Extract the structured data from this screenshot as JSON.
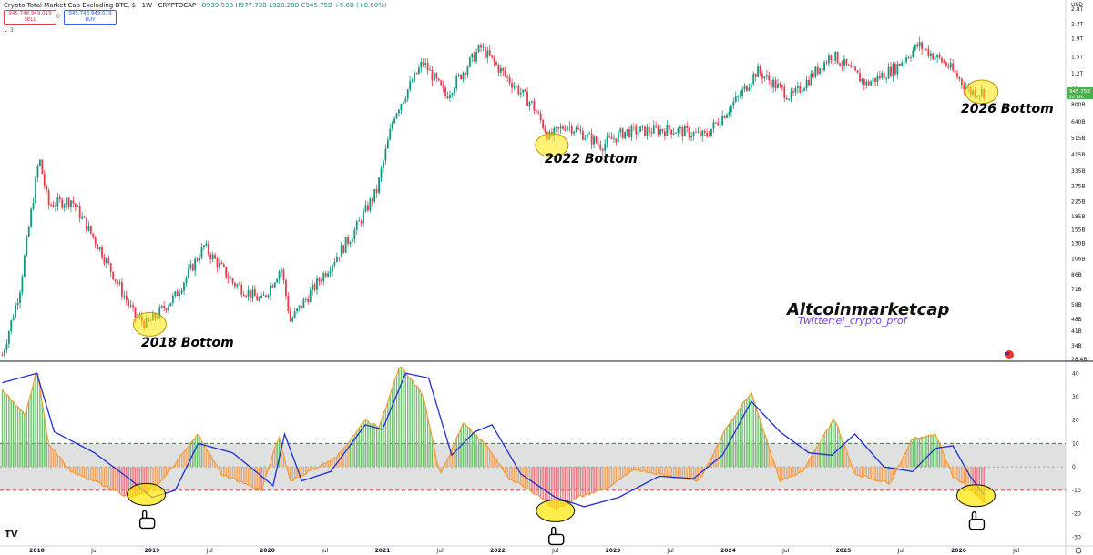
{
  "header": {
    "title": "Crypto Total Market Cap Excluding BTC, $ · 1W · CRYPTOCAP",
    "ohlc": "O939.93B H977.73B L928.28B C945.75B +5.6B (+0.60%)",
    "sell_price": "945,748,949,019",
    "sell_label": "SELL",
    "buy_price": "945,748,949,019",
    "buy_label": "BUY",
    "spread": "0",
    "indicator_count": "3"
  },
  "annotations": {
    "bottom_2018": "2018 Bottom",
    "bottom_2022": "2022 Bottom",
    "bottom_2026": "2026 Bottom",
    "brand": "Altcoinmarketcap",
    "twitter": "Twitter:el_crypto_prof"
  },
  "watermark": "TV",
  "colors": {
    "up": "#089981",
    "down": "#f23645",
    "green_hist": "#6cc36c",
    "red_hist": "#f4737f",
    "orange_hist": "#f5a25d",
    "blue_line": "#1f2fd0",
    "orange_line": "#f39c35",
    "highlight": "#ffe600",
    "price_tag": "#4caf50"
  },
  "chart_data": [
    {
      "type": "candlestick",
      "title": "Crypto Total Market Cap Excluding BTC, $ · 1W · CRYPTOCAP",
      "yscale": "log",
      "currency": "USD",
      "price_axis_ticks": [
        "2.8T",
        "2.3T",
        "1.9T",
        "1.5T",
        "1.2T",
        "1T",
        "800B",
        "640B",
        "515B",
        "415B",
        "335B",
        "275B",
        "225B",
        "185B",
        "155B",
        "130B",
        "106B",
        "86B",
        "71B",
        "58B",
        "48B",
        "41B",
        "34B",
        "28.4B"
      ],
      "last_price_label": "945.75B",
      "last_price_sublabel": "2d 14h",
      "x_ticks": [
        "2018",
        "Jul",
        "2019",
        "Jul",
        "2020",
        "Jul",
        "2021",
        "Jul",
        "2022",
        "Jul",
        "2023",
        "Jul",
        "2024",
        "Jul",
        "2025",
        "Jul",
        "2026",
        "Jul"
      ],
      "trend_points": [
        {
          "date": "2017.70",
          "value": 30
        },
        {
          "date": "2017.85",
          "value": 70
        },
        {
          "date": "2018.02",
          "value": 400
        },
        {
          "date": "2018.10",
          "value": 215
        },
        {
          "date": "2018.30",
          "value": 230
        },
        {
          "date": "2018.55",
          "value": 120
        },
        {
          "date": "2018.85",
          "value": 50
        },
        {
          "date": "2018.96",
          "value": 45
        },
        {
          "date": "2019.20",
          "value": 65
        },
        {
          "date": "2019.45",
          "value": 125
        },
        {
          "date": "2019.70",
          "value": 78
        },
        {
          "date": "2019.95",
          "value": 61
        },
        {
          "date": "2020.12",
          "value": 95
        },
        {
          "date": "2020.20",
          "value": 47
        },
        {
          "date": "2020.45",
          "value": 80
        },
        {
          "date": "2020.75",
          "value": 150
        },
        {
          "date": "2020.95",
          "value": 260
        },
        {
          "date": "2021.10",
          "value": 700
        },
        {
          "date": "2021.35",
          "value": 1400
        },
        {
          "date": "2021.55",
          "value": 900
        },
        {
          "date": "2021.85",
          "value": 1700
        },
        {
          "date": "2022.05",
          "value": 1200
        },
        {
          "date": "2022.30",
          "value": 800
        },
        {
          "date": "2022.45",
          "value": 520
        },
        {
          "date": "2022.60",
          "value": 620
        },
        {
          "date": "2022.90",
          "value": 470
        },
        {
          "date": "2023.10",
          "value": 560
        },
        {
          "date": "2023.50",
          "value": 580
        },
        {
          "date": "2023.80",
          "value": 530
        },
        {
          "date": "2024.10",
          "value": 900
        },
        {
          "date": "2024.25",
          "value": 1250
        },
        {
          "date": "2024.55",
          "value": 880
        },
        {
          "date": "2024.90",
          "value": 1550
        },
        {
          "date": "2025.20",
          "value": 1050
        },
        {
          "date": "2025.45",
          "value": 1300
        },
        {
          "date": "2025.65",
          "value": 1750
        },
        {
          "date": "2025.90",
          "value": 1350
        },
        {
          "date": "2026.10",
          "value": 950
        },
        {
          "date": "2026.22",
          "value": 946
        }
      ],
      "highlighted_bottoms": [
        "2018 Bottom",
        "2022 Bottom",
        "2026 Bottom"
      ]
    },
    {
      "type": "histogram",
      "name": "oscillator",
      "ylim": [
        -33,
        44
      ],
      "y_ticks": [
        40,
        30,
        20,
        10,
        0,
        -10,
        -20,
        -30
      ],
      "upper_band": 10,
      "lower_band": -10,
      "points": [
        {
          "date": "2017.70",
          "value": 33
        },
        {
          "date": "2017.90",
          "value": 22
        },
        {
          "date": "2018.00",
          "value": 42
        },
        {
          "date": "2018.10",
          "value": 10
        },
        {
          "date": "2018.30",
          "value": -2
        },
        {
          "date": "2018.55",
          "value": -7
        },
        {
          "date": "2018.80",
          "value": -13
        },
        {
          "date": "2018.95",
          "value": -11
        },
        {
          "date": "2019.10",
          "value": -5
        },
        {
          "date": "2019.40",
          "value": 14
        },
        {
          "date": "2019.60",
          "value": -3
        },
        {
          "date": "2019.95",
          "value": -10
        },
        {
          "date": "2020.10",
          "value": 13
        },
        {
          "date": "2020.20",
          "value": -6
        },
        {
          "date": "2020.40",
          "value": -1
        },
        {
          "date": "2020.60",
          "value": 4
        },
        {
          "date": "2020.85",
          "value": 20
        },
        {
          "date": "2020.97",
          "value": 17
        },
        {
          "date": "2021.15",
          "value": 43
        },
        {
          "date": "2021.35",
          "value": 31
        },
        {
          "date": "2021.50",
          "value": -4
        },
        {
          "date": "2021.70",
          "value": 19
        },
        {
          "date": "2021.90",
          "value": 9
        },
        {
          "date": "2022.10",
          "value": -5
        },
        {
          "date": "2022.35",
          "value": -12
        },
        {
          "date": "2022.50",
          "value": -18
        },
        {
          "date": "2022.70",
          "value": -13
        },
        {
          "date": "2022.95",
          "value": -9
        },
        {
          "date": "2023.20",
          "value": -1
        },
        {
          "date": "2023.50",
          "value": -4
        },
        {
          "date": "2023.75",
          "value": -6
        },
        {
          "date": "2024.00",
          "value": 18
        },
        {
          "date": "2024.20",
          "value": 32
        },
        {
          "date": "2024.45",
          "value": -6
        },
        {
          "date": "2024.65",
          "value": -2
        },
        {
          "date": "2024.92",
          "value": 21
        },
        {
          "date": "2025.10",
          "value": -3
        },
        {
          "date": "2025.40",
          "value": -7
        },
        {
          "date": "2025.60",
          "value": 12
        },
        {
          "date": "2025.80",
          "value": 14
        },
        {
          "date": "2025.95",
          "value": -4
        },
        {
          "date": "2026.10",
          "value": -9
        },
        {
          "date": "2026.22",
          "value": -15
        }
      ],
      "signal_line": [
        {
          "date": "2017.70",
          "value": 36
        },
        {
          "date": "2018.00",
          "value": 40
        },
        {
          "date": "2018.15",
          "value": 15
        },
        {
          "date": "2018.50",
          "value": 6
        },
        {
          "date": "2018.80",
          "value": -5
        },
        {
          "date": "2019.00",
          "value": -13
        },
        {
          "date": "2019.20",
          "value": -10
        },
        {
          "date": "2019.40",
          "value": 10
        },
        {
          "date": "2019.70",
          "value": 6
        },
        {
          "date": "2020.05",
          "value": -8
        },
        {
          "date": "2020.15",
          "value": 14
        },
        {
          "date": "2020.30",
          "value": -6
        },
        {
          "date": "2020.55",
          "value": -2
        },
        {
          "date": "2020.85",
          "value": 18
        },
        {
          "date": "2021.00",
          "value": 16
        },
        {
          "date": "2021.20",
          "value": 40
        },
        {
          "date": "2021.40",
          "value": 38
        },
        {
          "date": "2021.60",
          "value": 5
        },
        {
          "date": "2021.80",
          "value": 15
        },
        {
          "date": "2021.95",
          "value": 18
        },
        {
          "date": "2022.20",
          "value": -3
        },
        {
          "date": "2022.50",
          "value": -13
        },
        {
          "date": "2022.75",
          "value": -17
        },
        {
          "date": "2023.05",
          "value": -13
        },
        {
          "date": "2023.40",
          "value": -4
        },
        {
          "date": "2023.70",
          "value": -5
        },
        {
          "date": "2023.95",
          "value": 5
        },
        {
          "date": "2024.20",
          "value": 28
        },
        {
          "date": "2024.45",
          "value": 15
        },
        {
          "date": "2024.70",
          "value": 6
        },
        {
          "date": "2024.90",
          "value": 5
        },
        {
          "date": "2025.10",
          "value": 14
        },
        {
          "date": "2025.35",
          "value": 0
        },
        {
          "date": "2025.60",
          "value": -2
        },
        {
          "date": "2025.80",
          "value": 8
        },
        {
          "date": "2025.95",
          "value": 9
        },
        {
          "date": "2026.10",
          "value": -4
        },
        {
          "date": "2026.22",
          "value": -12
        }
      ],
      "highlighted_bottoms_dates": [
        "2018.95",
        "2022.50",
        "2026.15"
      ]
    }
  ]
}
